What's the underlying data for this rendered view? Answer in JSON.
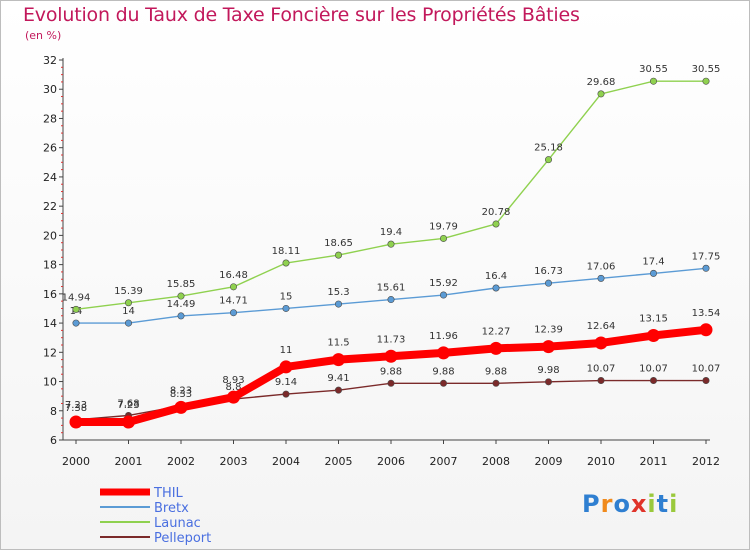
{
  "chart_data": {
    "type": "line",
    "title": "Evolution du Taux de Taxe Foncière sur les Propriétés Bâties",
    "subtitle": "(en %)",
    "x": [
      "2000",
      "2001",
      "2002",
      "2003",
      "2004",
      "2005",
      "2006",
      "2007",
      "2008",
      "2009",
      "2010",
      "2011",
      "2012"
    ],
    "ylim": [
      6,
      32
    ],
    "yticks": [
      6,
      8,
      10,
      12,
      14,
      16,
      18,
      20,
      22,
      24,
      26,
      28,
      30,
      32
    ],
    "grid": false,
    "legend_position": "bottom-left",
    "series": [
      {
        "name": "THIL",
        "color": "#ff0000",
        "values": [
          7.23,
          7.23,
          8.23,
          8.93,
          11,
          11.5,
          11.73,
          11.96,
          12.27,
          12.39,
          12.64,
          13.15,
          13.54
        ],
        "labels": [
          "7.23",
          "7.23",
          "8.23",
          "8.93",
          "11",
          "11.5",
          "11.73",
          "11.96",
          "12.27",
          "12.39",
          "12.64",
          "13.15",
          "13.54"
        ]
      },
      {
        "name": "Bretx",
        "color": "#5b9bd5",
        "values": [
          14,
          14,
          14.49,
          14.71,
          15,
          15.3,
          15.61,
          15.92,
          16.4,
          16.73,
          17.06,
          17.4,
          17.75
        ],
        "labels": [
          "14",
          "14",
          "14.49",
          "14.71",
          "15",
          "15.3",
          "15.61",
          "15.92",
          "16.4",
          "16.73",
          "17.06",
          "17.4",
          "17.75"
        ]
      },
      {
        "name": "Launac",
        "color": "#8fd14f",
        "values": [
          14.94,
          15.39,
          15.85,
          16.48,
          18.11,
          18.65,
          19.4,
          19.79,
          20.78,
          25.18,
          29.68,
          30.55,
          30.55
        ],
        "labels": [
          "14.94",
          "15.39",
          "15.85",
          "16.48",
          "18.11",
          "18.65",
          "19.4",
          "19.79",
          "20.78",
          "25.18",
          "29.68",
          "30.55",
          "30.55"
        ]
      },
      {
        "name": "Pelleport",
        "color": "#7b2a2a",
        "values": [
          7.38,
          7.68,
          8.33,
          8.8,
          9.14,
          9.41,
          9.88,
          9.88,
          9.88,
          9.98,
          10.07,
          10.07,
          10.07
        ],
        "labels": [
          "7.38",
          "7.68",
          "8.33",
          "8.8",
          "9.14",
          "9.41",
          "9.88",
          "9.88",
          "9.88",
          "9.98",
          "10.07",
          "10.07",
          "10.07"
        ]
      }
    ]
  },
  "logo": {
    "letters": [
      "P",
      "r",
      "o",
      "x",
      "i",
      "t",
      "i"
    ],
    "colors": [
      "#2f7fd1",
      "#f08a1c",
      "#2f7fd1",
      "#e0342a",
      "#9ac93c",
      "#2f7fd1",
      "#9ac93c"
    ]
  }
}
